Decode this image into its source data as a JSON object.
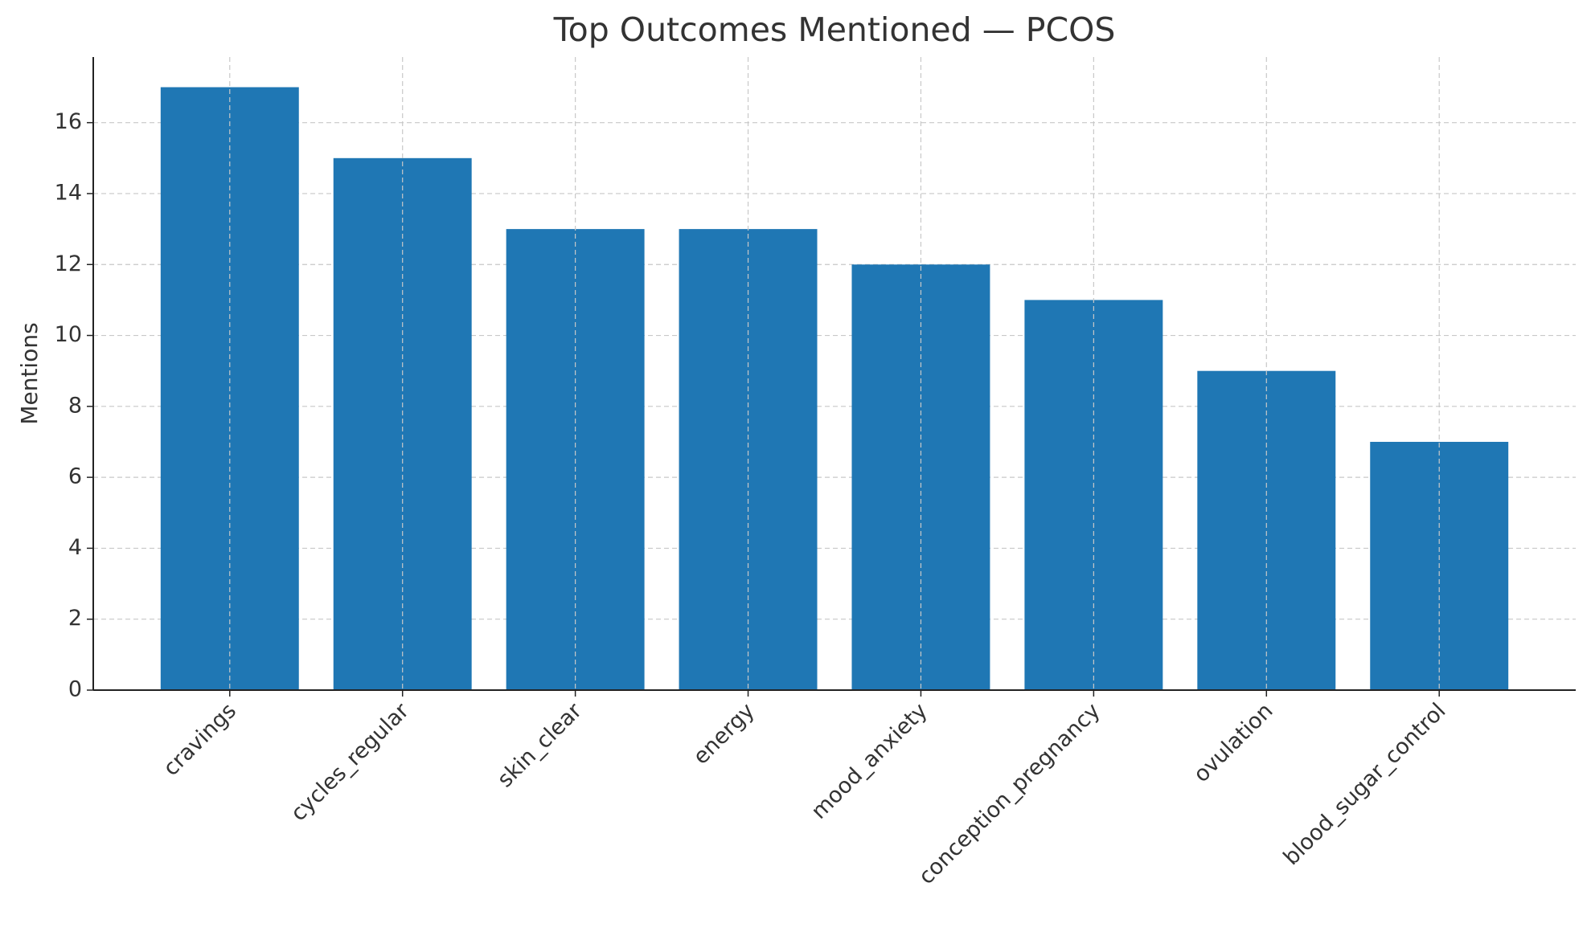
{
  "chart_data": {
    "type": "bar",
    "title": "Top Outcomes Mentioned — PCOS",
    "ylabel": "Mentions",
    "categories": [
      "cravings",
      "cycles_regular",
      "skin_clear",
      "energy",
      "mood_anxiety",
      "conception_pregnancy",
      "ovulation",
      "blood_sugar_control"
    ],
    "values": [
      17,
      15,
      13,
      13,
      12,
      11,
      9,
      7
    ],
    "color": "#1f77b4",
    "ylim": [
      0,
      17.85
    ],
    "yticks": [
      0,
      2,
      4,
      6,
      8,
      10,
      12,
      14,
      16
    ],
    "grid": true
  }
}
